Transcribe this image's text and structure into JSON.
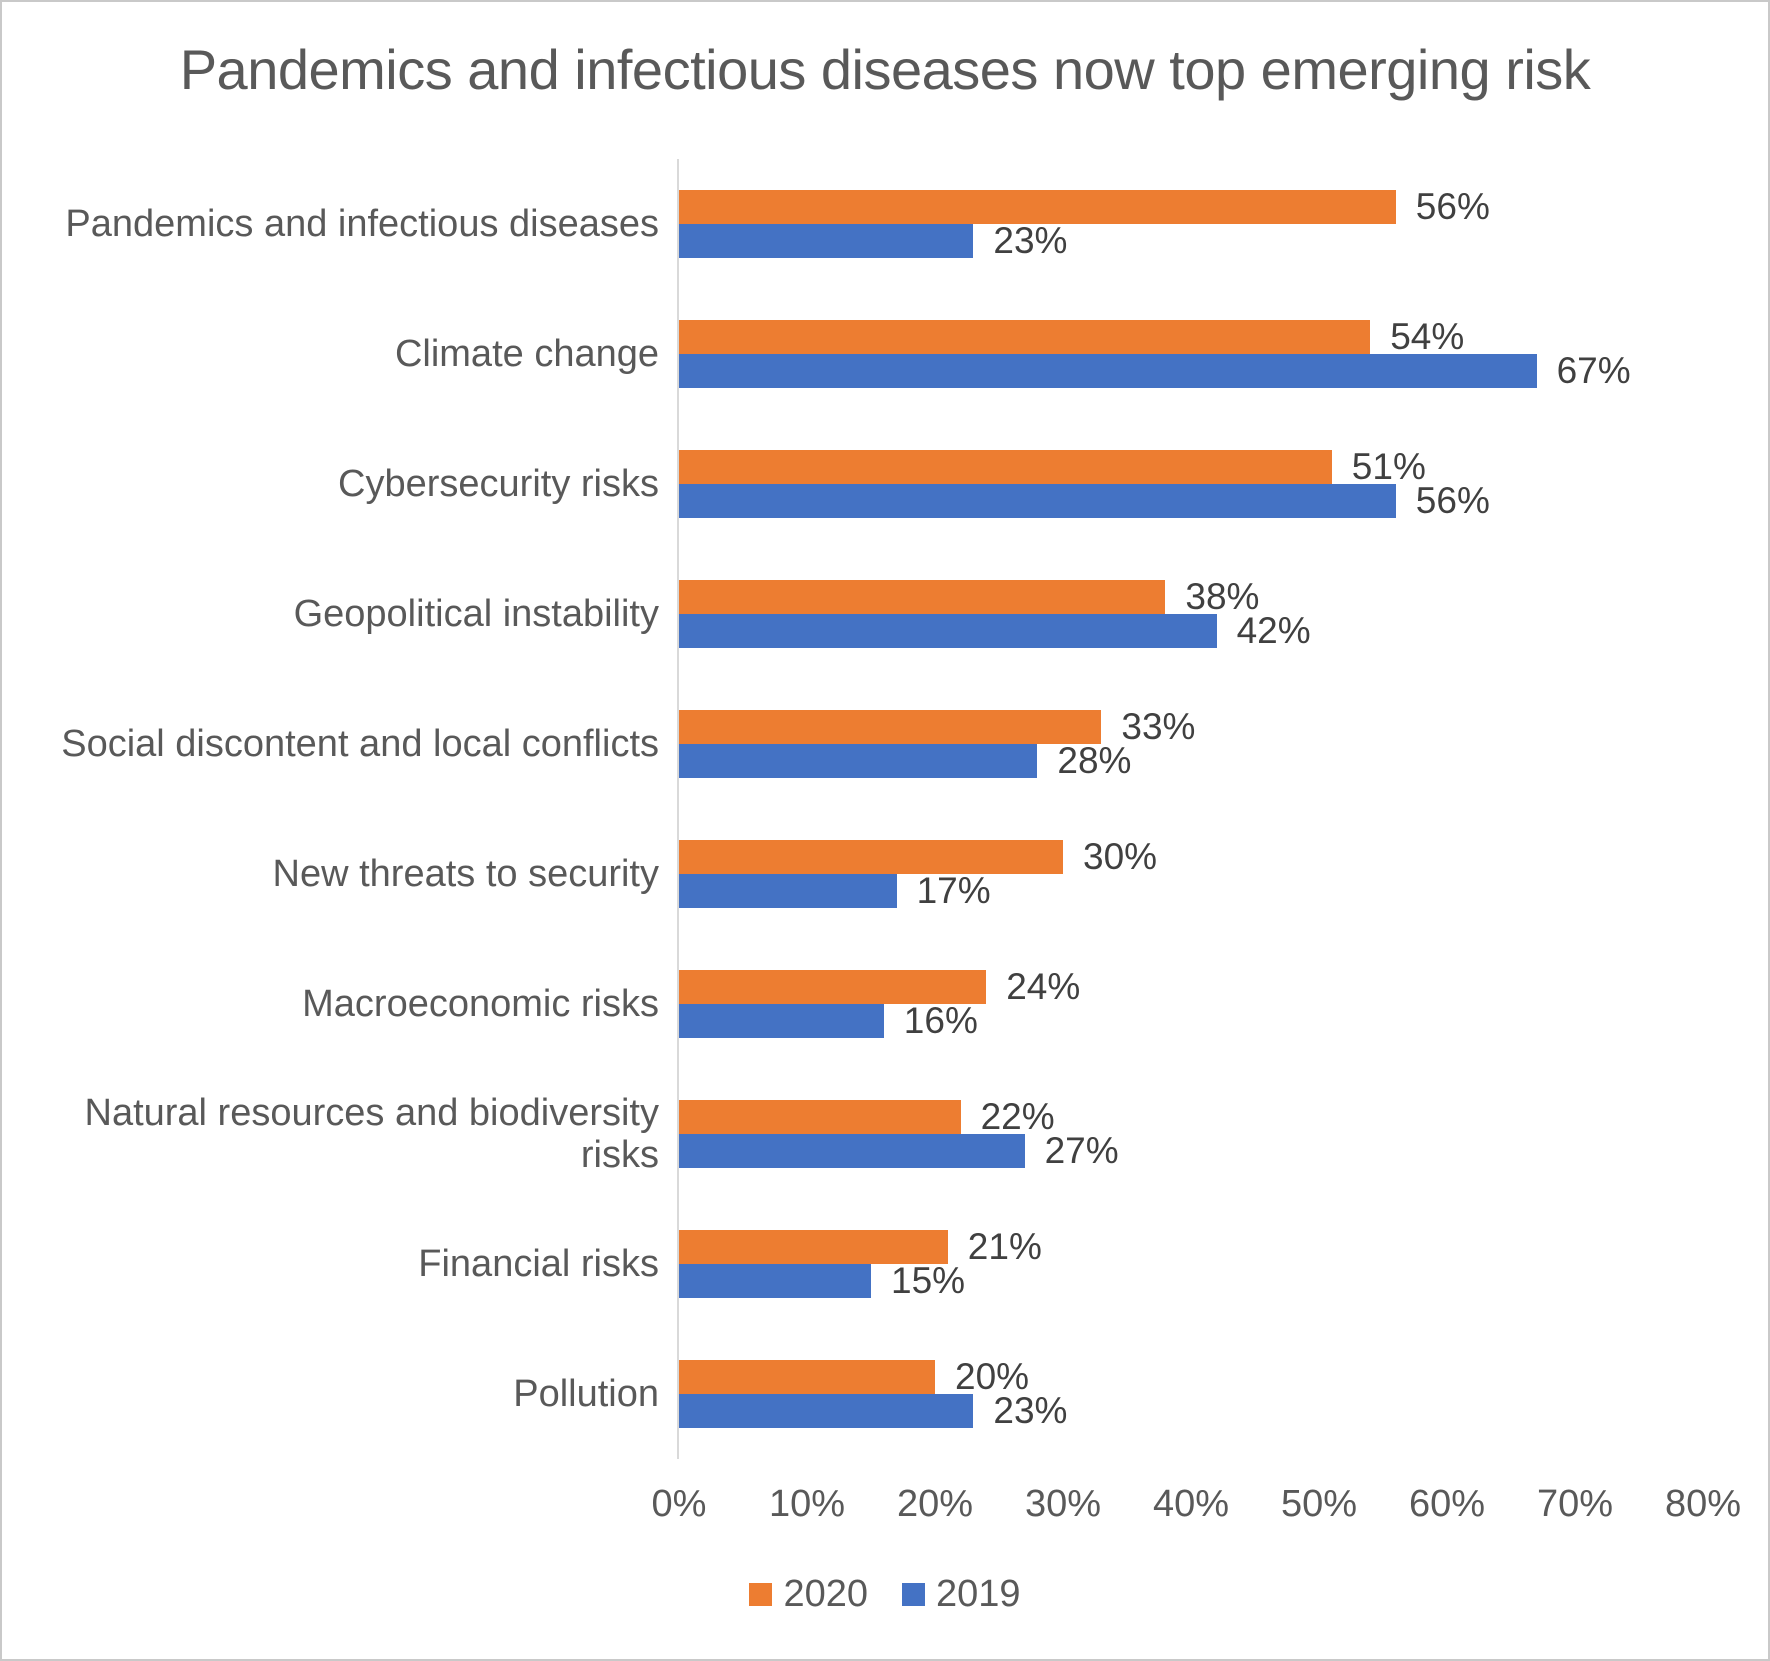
{
  "chart_data": {
    "type": "bar",
    "orientation": "horizontal",
    "title": "Pandemics and infectious diseases now top emerging risk",
    "categories": [
      "Pandemics and infectious diseases",
      "Climate change",
      "Cybersecurity risks",
      "Geopolitical instability",
      "Social discontent and local conflicts",
      "New threats to security",
      "Macroeconomic risks",
      "Natural resources and biodiversity risks",
      "Financial risks",
      "Pollution"
    ],
    "series": [
      {
        "name": "2020",
        "color": "#ED7D31",
        "values": [
          56,
          54,
          51,
          38,
          33,
          30,
          24,
          22,
          21,
          20
        ],
        "labels": [
          "56%",
          "54%",
          "51%",
          "38%",
          "33%",
          "30%",
          "24%",
          "22%",
          "21%",
          "20%"
        ]
      },
      {
        "name": "2019",
        "color": "#4472C4",
        "values": [
          23,
          67,
          56,
          42,
          28,
          17,
          16,
          27,
          15,
          23
        ],
        "labels": [
          "23%",
          "67%",
          "56%",
          "42%",
          "28%",
          "17%",
          "16%",
          "27%",
          "15%",
          "23%"
        ]
      }
    ],
    "x_ticks": [
      "0%",
      "10%",
      "20%",
      "30%",
      "40%",
      "50%",
      "60%",
      "70%",
      "80%"
    ],
    "xlim": [
      0,
      80
    ],
    "grid": false,
    "legend_position": "bottom",
    "colors": {
      "axis_line": "#D9D9D9",
      "title_text": "#595959",
      "category_text": "#595959",
      "tick_text": "#595959",
      "value_text": "#404040",
      "background": "#FFFFFF"
    }
  }
}
